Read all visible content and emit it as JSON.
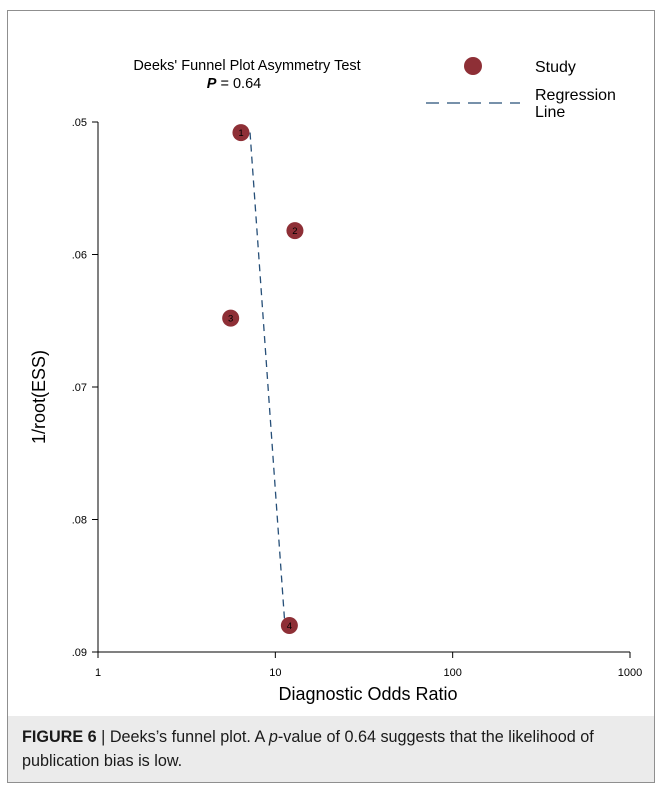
{
  "chart_data": {
    "type": "scatter",
    "title": "Deeks' Funnel Plot Asymmetry Test",
    "subtitle_label": "P",
    "subtitle_value": " = 0.64",
    "xlabel": "Diagnostic Odds Ratio",
    "ylabel": "1/root(ESS)",
    "x_scale": "log",
    "xlim": [
      1,
      1000
    ],
    "ylim": [
      0.05,
      0.09
    ],
    "y_inverted": true,
    "x_ticks": [
      1,
      10,
      100,
      1000
    ],
    "x_tick_labels": [
      "1",
      "10",
      "100",
      "1000"
    ],
    "y_ticks": [
      0.05,
      0.06,
      0.07,
      0.08,
      0.09
    ],
    "y_tick_labels": [
      ".05",
      ".06",
      ".07",
      ".08",
      ".09"
    ],
    "points": [
      {
        "label": "1",
        "x": 6.4,
        "y": 0.0508
      },
      {
        "label": "2",
        "x": 12.9,
        "y": 0.0582
      },
      {
        "label": "3",
        "x": 5.6,
        "y": 0.0648
      },
      {
        "label": "4",
        "x": 12.0,
        "y": 0.088
      }
    ],
    "regression_line": [
      {
        "x": 7.2,
        "y": 0.0508
      },
      {
        "x": 11.3,
        "y": 0.0878
      }
    ],
    "legend": [
      {
        "label": "Study",
        "kind": "marker"
      },
      {
        "label": "Regression\nLine",
        "kind": "dashed-line"
      }
    ],
    "legend_position": "top-right",
    "grid": false,
    "colors": {
      "marker": "#8e2f36",
      "line": "#264f78"
    }
  },
  "caption": {
    "figure_label": "FIGURE 6",
    "separator": " | ",
    "text_before": "Deeks’s funnel plot. A ",
    "text_italic": "p",
    "text_after": "-value of 0.64 suggests that the likelihood of publication bias is low."
  }
}
